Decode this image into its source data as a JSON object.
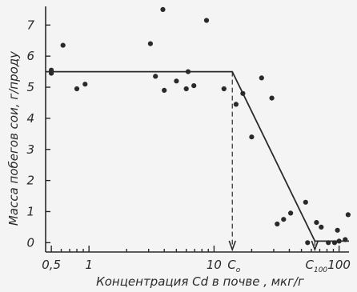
{
  "chart_data": {
    "type": "scatter",
    "xscale": "log",
    "xlim": [
      0.45,
      120
    ],
    "ylim": [
      -0.3,
      7.6
    ],
    "x_ticks": [
      {
        "value": 0.5,
        "label": "0,5"
      },
      {
        "value": 1,
        "label": "1"
      },
      {
        "value": 10,
        "label": "10"
      },
      {
        "value": 100,
        "label": "100"
      }
    ],
    "x_minor_ticks": [
      0.6,
      0.7,
      0.8,
      0.9,
      2,
      3,
      4,
      5,
      6,
      7,
      8,
      9,
      20,
      30,
      40,
      50,
      60,
      70,
      80,
      90
    ],
    "y_ticks": [
      0,
      1,
      2,
      3,
      4,
      5,
      6,
      7
    ],
    "xlabel": "Концентрация Cd в почве , мкг/г",
    "ylabel": "Масса побегов сои, г/проду",
    "grid": false,
    "points": [
      {
        "x": 0.5,
        "y": 5.55
      },
      {
        "x": 0.5,
        "y": 5.45
      },
      {
        "x": 0.62,
        "y": 6.35
      },
      {
        "x": 0.8,
        "y": 4.95
      },
      {
        "x": 0.93,
        "y": 5.1
      },
      {
        "x": 3.1,
        "y": 6.4
      },
      {
        "x": 3.4,
        "y": 5.35
      },
      {
        "x": 3.9,
        "y": 7.5
      },
      {
        "x": 4.0,
        "y": 4.9
      },
      {
        "x": 5.0,
        "y": 5.2
      },
      {
        "x": 6.0,
        "y": 4.95
      },
      {
        "x": 6.2,
        "y": 5.5
      },
      {
        "x": 6.9,
        "y": 5.05
      },
      {
        "x": 8.7,
        "y": 7.15
      },
      {
        "x": 12.0,
        "y": 4.95
      },
      {
        "x": 15.0,
        "y": 4.45
      },
      {
        "x": 17.0,
        "y": 4.8
      },
      {
        "x": 20.0,
        "y": 3.4
      },
      {
        "x": 24.0,
        "y": 5.3
      },
      {
        "x": 29.0,
        "y": 4.65
      },
      {
        "x": 32.0,
        "y": 0.6
      },
      {
        "x": 36.0,
        "y": 0.75
      },
      {
        "x": 41.0,
        "y": 0.95
      },
      {
        "x": 54.0,
        "y": 1.3
      },
      {
        "x": 56.0,
        "y": 0.0
      },
      {
        "x": 66.0,
        "y": 0.65
      },
      {
        "x": 72.0,
        "y": 0.5
      },
      {
        "x": 82.0,
        "y": 0.0
      },
      {
        "x": 92.0,
        "y": 0.0
      },
      {
        "x": 97.0,
        "y": 0.4
      },
      {
        "x": 100.0,
        "y": 0.05
      },
      {
        "x": 112.0,
        "y": 0.1
      },
      {
        "x": 118.0,
        "y": 0.9
      }
    ],
    "fit_line": [
      {
        "x": 0.45,
        "y": 5.5
      },
      {
        "x": 14.0,
        "y": 5.5
      },
      {
        "x": 64.0,
        "y": 0.05
      },
      {
        "x": 120.0,
        "y": 0.05
      }
    ],
    "annotations": [
      {
        "main": "C",
        "sub": "o",
        "x": 14.0
      },
      {
        "main": "C",
        "sub": "100",
        "x": 64.0
      }
    ]
  }
}
